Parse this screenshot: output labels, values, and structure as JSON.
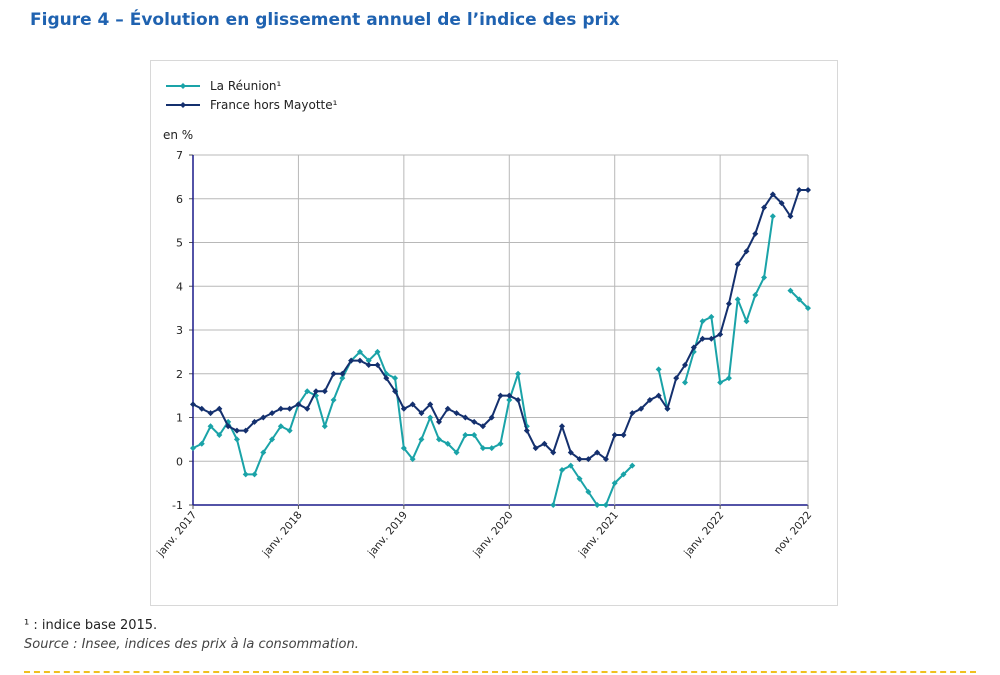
{
  "title": "Figure 4 – Évolution en glissement annuel de l’indice des prix",
  "chart_data": {
    "type": "line",
    "title": "Figure 4 – Évolution en glissement annuel de l’indice des prix",
    "xlabel": "",
    "ylabel": "en %",
    "ylim": [
      -1,
      7
    ],
    "yticks": [
      "-1",
      "0",
      "1",
      "2",
      "3",
      "4",
      "5",
      "6",
      "7"
    ],
    "x_start": "janv. 2017",
    "x_end": "nov. 2022",
    "months": 71,
    "xtick_labels": [
      {
        "label": "janv. 2017",
        "month_index": 0
      },
      {
        "label": "janv. 2018",
        "month_index": 12
      },
      {
        "label": "janv. 2019",
        "month_index": 24
      },
      {
        "label": "janv. 2020",
        "month_index": 36
      },
      {
        "label": "janv. 2021",
        "month_index": 48
      },
      {
        "label": "janv. 2022",
        "month_index": 60
      },
      {
        "label": "nov. 2022",
        "month_index": 70
      }
    ],
    "grid": true,
    "legend_position": "top-left",
    "series": [
      {
        "name": "La Réunion¹",
        "color": "#1aa3a8",
        "values": [
          0.3,
          0.4,
          0.8,
          0.6,
          0.9,
          0.5,
          -0.3,
          -0.3,
          0.2,
          0.5,
          0.8,
          0.7,
          1.3,
          1.6,
          1.5,
          0.8,
          1.4,
          1.9,
          2.3,
          2.5,
          2.3,
          2.5,
          2.0,
          1.9,
          0.3,
          0.05,
          0.5,
          1.0,
          0.5,
          0.4,
          0.2,
          0.6,
          0.6,
          0.3,
          0.3,
          0.4,
          1.4,
          2.0,
          0.8,
          null,
          null,
          -1.0,
          -0.2,
          -0.1,
          -0.4,
          -0.7,
          -1.0,
          -1.0,
          -0.5,
          -0.3,
          -0.1,
          null,
          null,
          2.1,
          1.2,
          null,
          1.8,
          2.5,
          3.2,
          3.3,
          1.8,
          1.9,
          3.7,
          3.2,
          3.8,
          4.2,
          5.6,
          null,
          3.9,
          3.7,
          3.5
        ]
      },
      {
        "name": "France hors Mayotte¹",
        "color": "#14306e",
        "values": [
          1.3,
          1.2,
          1.1,
          1.2,
          0.8,
          0.7,
          0.7,
          0.9,
          1.0,
          1.1,
          1.2,
          1.2,
          1.3,
          1.2,
          1.6,
          1.6,
          2.0,
          2.0,
          2.3,
          2.3,
          2.2,
          2.2,
          1.9,
          1.6,
          1.2,
          1.3,
          1.1,
          1.3,
          0.9,
          1.2,
          1.1,
          1.0,
          0.9,
          0.8,
          1.0,
          1.5,
          1.5,
          1.4,
          0.7,
          0.3,
          0.4,
          0.2,
          0.8,
          0.2,
          0.05,
          0.05,
          0.2,
          0.05,
          0.6,
          0.6,
          1.1,
          1.2,
          1.4,
          1.5,
          1.2,
          1.9,
          2.2,
          2.6,
          2.8,
          2.8,
          2.9,
          3.6,
          4.5,
          4.8,
          5.2,
          5.8,
          6.1,
          5.9,
          5.6,
          6.2,
          6.2
        ]
      }
    ]
  },
  "footnote": "¹ : indice base 2015.",
  "source": "Source : Insee, indices des prix à la consommation."
}
